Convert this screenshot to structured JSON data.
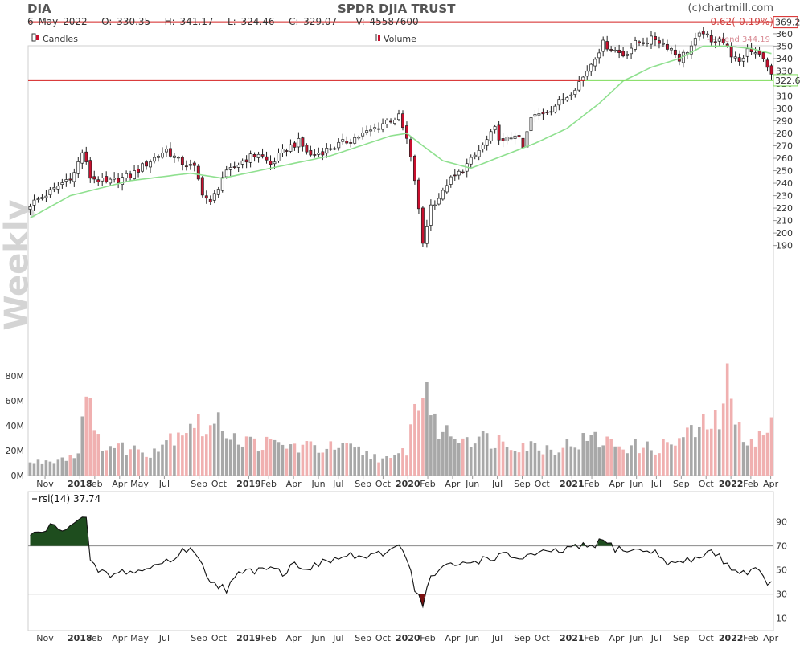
{
  "header": {
    "ticker": "DIA",
    "title": "SPDR DJIA TRUST",
    "credit": "(c)chartmill.com",
    "date": "6 May 2022",
    "open": "O: 330.35",
    "high": "H: 341.17",
    "low": "L: 324.46",
    "close": "C: 329.07",
    "volume": "V: 45587600",
    "change": "-0.62(-0.19%)"
  },
  "legend": {
    "candles": "Candles",
    "volume": "Volume",
    "trend": "--- trend 344.19",
    "rsi": "rsi(14) 37.74"
  },
  "watermark": "Weekly",
  "colors": {
    "up": "#ffffff",
    "down": "#c8102e",
    "trend": "#8fe08f",
    "trend_above": "#d9a0a6",
    "level_line": "#d42020",
    "support_line": "#7ddc5a",
    "vol_up": "#a8a8a8",
    "vol_down": "#f0b0b0",
    "rsi_over": "#1e4d1e",
    "rsi_under": "#7a0f0f"
  },
  "chart_data": [
    {
      "type": "candlestick",
      "panel": "price",
      "interval": "weekly",
      "ylim": [
        180,
        370
      ],
      "y_ticks": [
        190,
        200,
        210,
        220,
        230,
        240,
        250,
        260,
        270,
        280,
        290,
        300,
        310,
        320,
        330,
        340,
        350,
        360
      ],
      "x_ticks": [
        "Nov",
        "2018",
        "Feb",
        "Apr",
        "May",
        "Jul",
        "Sep",
        "Oct",
        "2019",
        "Feb",
        "Apr",
        "Jun",
        "Jul",
        "Sep",
        "Oct",
        "2020",
        "Feb",
        "Apr",
        "Jun",
        "Jul",
        "Sep",
        "Oct",
        "2021",
        "Feb",
        "Apr",
        "Jun",
        "Jul",
        "Sep",
        "Oct",
        "2022",
        "Feb",
        "Apr"
      ],
      "x_ticks_bold": [
        "2018",
        "2019",
        "2020",
        "2021",
        "2022"
      ],
      "horizontal_levels": [
        {
          "value": 369.2,
          "label": "369.2"
        },
        {
          "value": 322.6,
          "label": "322.6"
        }
      ],
      "trend_value": 344.19,
      "series": [
        {
          "name": "Candles",
          "close_anchors": [
            [
              0,
              223
            ],
            [
              6,
              235
            ],
            [
              11,
              248
            ],
            [
              13,
              265
            ],
            [
              15,
              245
            ],
            [
              19,
              240
            ],
            [
              25,
              246
            ],
            [
              30,
              258
            ],
            [
              34,
              267
            ],
            [
              37,
              258
            ],
            [
              41,
              252
            ],
            [
              43,
              233
            ],
            [
              45,
              223
            ],
            [
              48,
              245
            ],
            [
              53,
              258
            ],
            [
              57,
              264
            ],
            [
              60,
              255
            ],
            [
              64,
              268
            ],
            [
              67,
              273
            ],
            [
              70,
              262
            ],
            [
              75,
              268
            ],
            [
              80,
              275
            ],
            [
              85,
              282
            ],
            [
              89,
              290
            ],
            [
              92,
              293
            ],
            [
              94,
              275
            ],
            [
              96,
              243
            ],
            [
              98,
              192
            ],
            [
              100,
              222
            ],
            [
              103,
              232
            ],
            [
              104,
              240
            ],
            [
              107,
              248
            ],
            [
              110,
              258
            ],
            [
              113,
              270
            ],
            [
              116,
              283
            ],
            [
              118,
              272
            ],
            [
              121,
              280
            ],
            [
              123,
              268
            ],
            [
              125,
              292
            ],
            [
              130,
              300
            ],
            [
              134,
              310
            ],
            [
              138,
              325
            ],
            [
              141,
              342
            ],
            [
              143,
              352
            ],
            [
              148,
              343
            ],
            [
              151,
              352
            ],
            [
              156,
              356
            ],
            [
              160,
              348
            ],
            [
              162,
              340
            ],
            [
              165,
              350
            ],
            [
              168,
              362
            ],
            [
              170,
              352
            ],
            [
              172,
              358
            ],
            [
              174,
              348
            ],
            [
              177,
              335
            ],
            [
              179,
              348
            ],
            [
              182,
              345
            ],
            [
              184,
              332
            ],
            [
              185,
              329
            ]
          ]
        },
        {
          "name": "trend",
          "anchors": [
            [
              0,
              212
            ],
            [
              10,
              230
            ],
            [
              25,
              242
            ],
            [
              40,
              248
            ],
            [
              48,
              244
            ],
            [
              60,
              252
            ],
            [
              75,
              262
            ],
            [
              90,
              278
            ],
            [
              94,
              280
            ],
            [
              98,
              270
            ],
            [
              103,
              258
            ],
            [
              110,
              252
            ],
            [
              118,
              262
            ],
            [
              126,
              272
            ],
            [
              134,
              284
            ],
            [
              142,
              304
            ],
            [
              148,
              322
            ],
            [
              155,
              333
            ],
            [
              162,
              340
            ],
            [
              168,
              350
            ],
            [
              174,
              350
            ],
            [
              180,
              348
            ],
            [
              185,
              344
            ]
          ]
        }
      ]
    },
    {
      "type": "bar",
      "panel": "volume",
      "ylim": [
        0,
        90000000
      ],
      "y_ticks": [
        0,
        20000000,
        40000000,
        60000000,
        80000000
      ],
      "y_tick_labels": [
        "0M",
        "20M",
        "40M",
        "60M",
        "80M"
      ],
      "series": [
        {
          "name": "Volume",
          "anchors": [
            [
              0,
              10
            ],
            [
              6,
              13
            ],
            [
              12,
              18
            ],
            [
              14,
              88
            ],
            [
              16,
              30
            ],
            [
              20,
              24
            ],
            [
              30,
              20
            ],
            [
              41,
              46
            ],
            [
              43,
              38
            ],
            [
              48,
              42
            ],
            [
              53,
              28
            ],
            [
              65,
              24
            ],
            [
              80,
              22
            ],
            [
              90,
              12
            ],
            [
              94,
              22
            ],
            [
              96,
              55
            ],
            [
              98,
              70
            ],
            [
              99,
              74
            ],
            [
              101,
              40
            ],
            [
              105,
              34
            ],
            [
              115,
              30
            ],
            [
              130,
              22
            ],
            [
              140,
              30
            ],
            [
              146,
              26
            ],
            [
              155,
              22
            ],
            [
              160,
              26
            ],
            [
              168,
              40
            ],
            [
              172,
              45
            ],
            [
              174,
              90
            ],
            [
              176,
              38
            ],
            [
              181,
              30
            ],
            [
              184,
              34
            ],
            [
              185,
              46
            ]
          ]
        }
      ]
    },
    {
      "type": "line",
      "panel": "rsi",
      "ylim": [
        10,
        95
      ],
      "y_ticks": [
        10,
        30,
        50,
        70,
        90
      ],
      "levels": [
        30,
        70
      ],
      "series": [
        {
          "name": "rsi(14)",
          "anchors": [
            [
              0,
              78
            ],
            [
              3,
              82
            ],
            [
              5,
              86
            ],
            [
              7,
              84
            ],
            [
              10,
              88
            ],
            [
              14,
              93
            ],
            [
              15,
              55
            ],
            [
              17,
              50
            ],
            [
              20,
              45
            ],
            [
              24,
              49
            ],
            [
              28,
              49
            ],
            [
              32,
              55
            ],
            [
              36,
              60
            ],
            [
              40,
              70
            ],
            [
              42,
              58
            ],
            [
              45,
              42
            ],
            [
              49,
              34
            ],
            [
              52,
              46
            ],
            [
              56,
              50
            ],
            [
              60,
              55
            ],
            [
              63,
              47
            ],
            [
              66,
              55
            ],
            [
              70,
              52
            ],
            [
              75,
              58
            ],
            [
              80,
              62
            ],
            [
              85,
              60
            ],
            [
              90,
              66
            ],
            [
              92,
              74
            ],
            [
              94,
              60
            ],
            [
              96,
              35
            ],
            [
              98,
              22
            ],
            [
              100,
              44
            ],
            [
              103,
              52
            ],
            [
              108,
              55
            ],
            [
              113,
              59
            ],
            [
              118,
              62
            ],
            [
              122,
              60
            ],
            [
              126,
              63
            ],
            [
              130,
              64
            ],
            [
              135,
              68
            ],
            [
              140,
              70
            ],
            [
              143,
              74
            ],
            [
              146,
              68
            ],
            [
              150,
              66
            ],
            [
              155,
              66
            ],
            [
              160,
              55
            ],
            [
              165,
              58
            ],
            [
              170,
              66
            ],
            [
              174,
              55
            ],
            [
              177,
              48
            ],
            [
              181,
              50
            ],
            [
              185,
              37.74
            ]
          ]
        }
      ]
    }
  ]
}
